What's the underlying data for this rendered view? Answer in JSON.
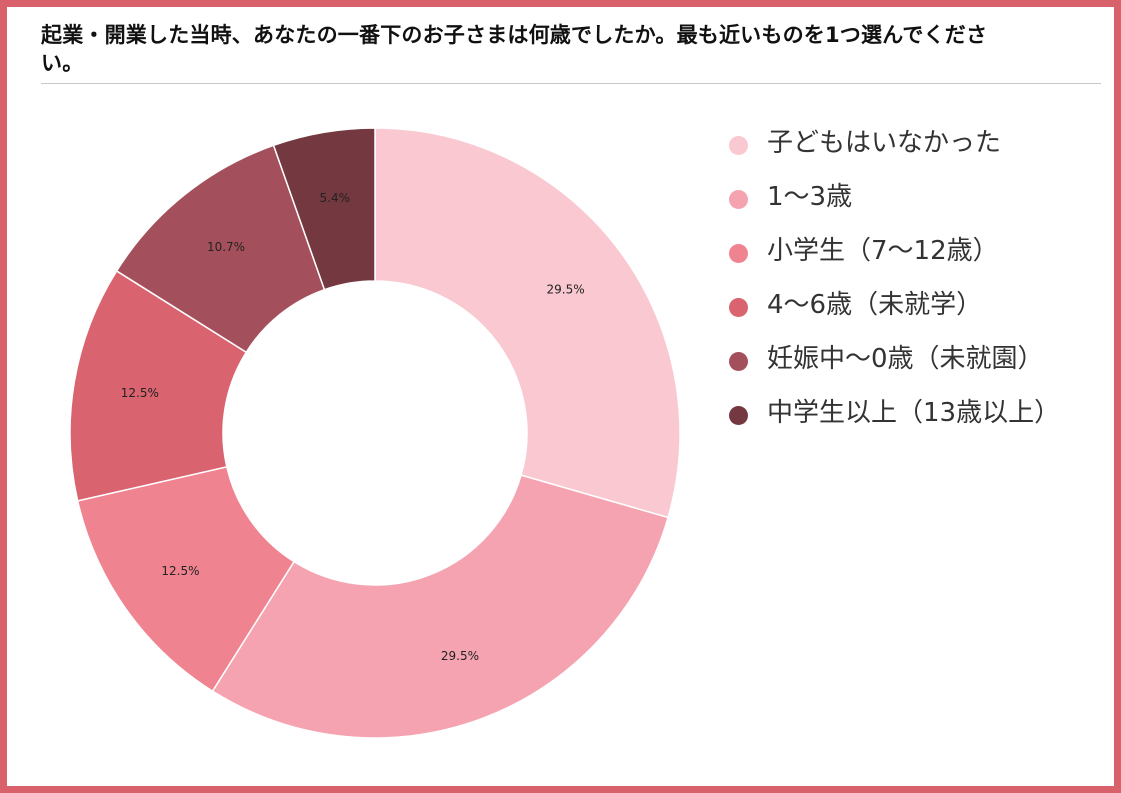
{
  "chart_data": {
    "type": "pie",
    "title": "起業・開業した当時、あなたの一番下のお子さまは何歳でしたか。最も近いものを1つ選んでください。",
    "donut": true,
    "categories": [
      "子どもはいなかった",
      "1〜3歳",
      "小学生（7〜12歳）",
      "4〜6歳（未就学）",
      "妊娠中〜0歳（未就園）",
      "中学生以上（13歳以上）"
    ],
    "values": [
      29.5,
      29.5,
      12.5,
      12.5,
      10.7,
      5.4
    ],
    "data_labels": [
      "29.5%",
      "29.5%",
      "12.5%",
      "12.5%",
      "10.7%",
      "5.4%"
    ],
    "colors": [
      "#f9c8d0",
      "#f5a3b0",
      "#f08390",
      "#d9636f",
      "#a4505c",
      "#733840"
    ],
    "legend_position": "right"
  },
  "legend": [
    {
      "label": "子どもはいなかった",
      "color": "#f9c8d0"
    },
    {
      "label": "1〜3歳",
      "color": "#f5a3b0"
    },
    {
      "label": "小学生（7〜12歳）",
      "color": "#f08390"
    },
    {
      "label": "4〜6歳（未就学）",
      "color": "#d9636f"
    },
    {
      "label": "妊娠中〜0歳（未就園）",
      "color": "#a4505c"
    },
    {
      "label": "中学生以上（13歳以上）",
      "color": "#733840"
    }
  ]
}
